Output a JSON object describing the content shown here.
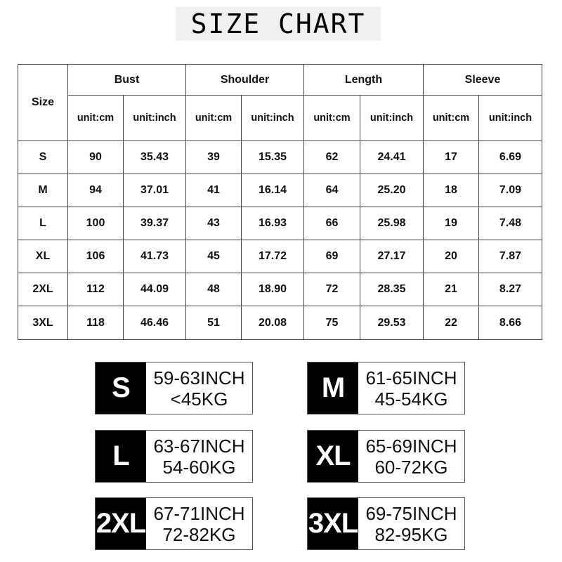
{
  "title": "SIZE CHART",
  "table": {
    "size_header": "Size",
    "groups": [
      "Bust",
      "Shoulder",
      "Length",
      "Sleeve"
    ],
    "unit_cm": "unit:cm",
    "unit_inch": "unit:inch",
    "rows": [
      {
        "size": "S",
        "values": [
          "90",
          "35.43",
          "39",
          "15.35",
          "62",
          "24.41",
          "17",
          "6.69"
        ]
      },
      {
        "size": "M",
        "values": [
          "94",
          "37.01",
          "41",
          "16.14",
          "64",
          "25.20",
          "18",
          "7.09"
        ]
      },
      {
        "size": "L",
        "values": [
          "100",
          "39.37",
          "43",
          "16.93",
          "66",
          "25.98",
          "19",
          "7.48"
        ]
      },
      {
        "size": "XL",
        "values": [
          "106",
          "41.73",
          "45",
          "17.72",
          "69",
          "27.17",
          "20",
          "7.87"
        ]
      },
      {
        "size": "2XL",
        "values": [
          "112",
          "44.09",
          "48",
          "18.90",
          "72",
          "28.35",
          "21",
          "8.27"
        ]
      },
      {
        "size": "3XL",
        "values": [
          "118",
          "46.46",
          "51",
          "20.08",
          "75",
          "29.53",
          "22",
          "8.66"
        ]
      }
    ]
  },
  "cards": [
    {
      "size": "S",
      "height": "59-63INCH",
      "weight": "<45KG"
    },
    {
      "size": "M",
      "height": "61-65INCH",
      "weight": "45-54KG"
    },
    {
      "size": "L",
      "height": "63-67INCH",
      "weight": "54-60KG"
    },
    {
      "size": "XL",
      "height": "65-69INCH",
      "weight": "60-72KG"
    },
    {
      "size": "2XL",
      "height": "67-71INCH",
      "weight": "72-82KG"
    },
    {
      "size": "3XL",
      "height": "69-75INCH",
      "weight": "82-95KG"
    }
  ]
}
